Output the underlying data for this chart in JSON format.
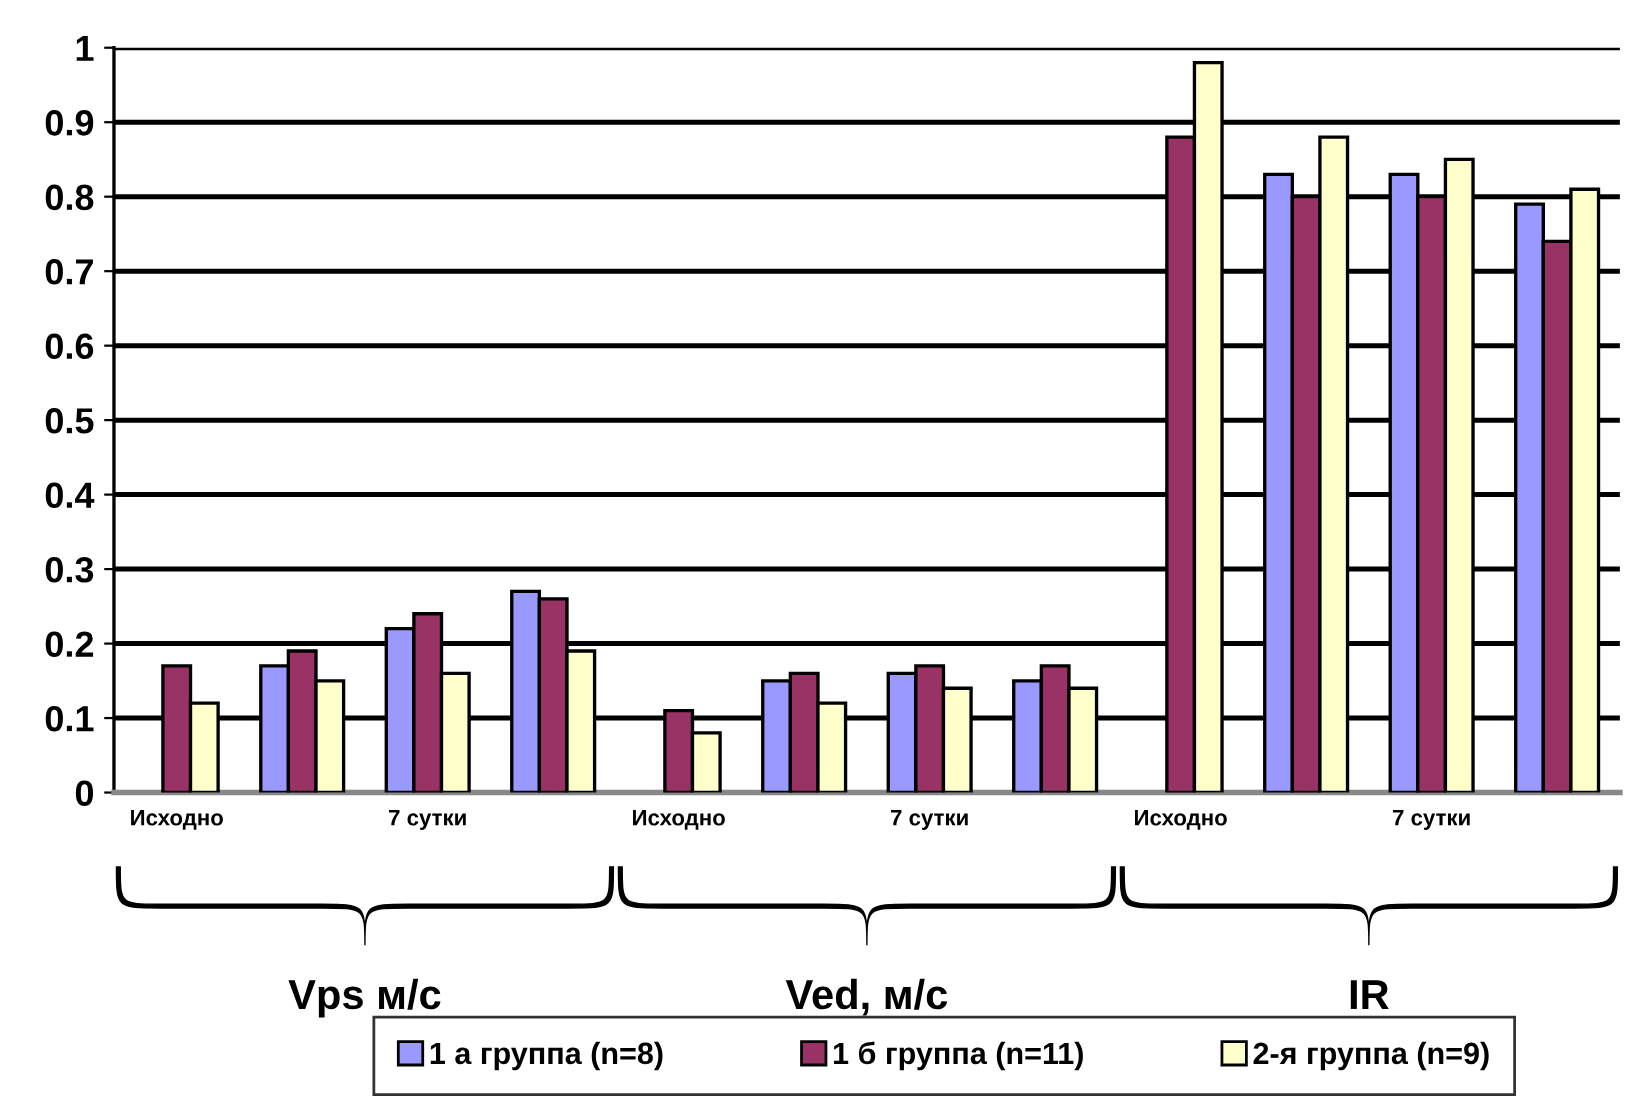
{
  "chart_data": {
    "type": "bar",
    "categories": [
      "Исходно",
      null,
      "7 сутки",
      null,
      "Исходно",
      null,
      "7 сутки",
      null,
      "Исходно",
      null,
      "7 сутки",
      null
    ],
    "series": [
      {
        "name": "1 а группа (n=8)",
        "color": "#9999ff",
        "values": [
          null,
          0.17,
          0.22,
          0.27,
          null,
          0.15,
          0.16,
          0.15,
          null,
          0.83,
          0.83,
          0.79
        ]
      },
      {
        "name": "1 б группа (n=11)",
        "color": "#993366",
        "values": [
          0.17,
          0.19,
          0.24,
          0.26,
          0.11,
          0.16,
          0.17,
          0.17,
          0.88,
          0.8,
          0.8,
          0.74
        ]
      },
      {
        "name": "2-я группа (n=9)",
        "color": "#ffffcc",
        "values": [
          0.12,
          0.15,
          0.16,
          0.19,
          0.08,
          0.12,
          0.14,
          0.14,
          0.98,
          0.88,
          0.85,
          0.81
        ]
      }
    ],
    "annotations": [
      "Vps м/с",
      "Ved, м/с",
      "IR"
    ],
    "ylim": [
      0,
      1
    ],
    "yticks": [
      0,
      0.1,
      0.2,
      0.3,
      0.4,
      0.5,
      0.6,
      0.7,
      0.8,
      0.9,
      1
    ],
    "grid": "y",
    "legend": "bottom"
  }
}
